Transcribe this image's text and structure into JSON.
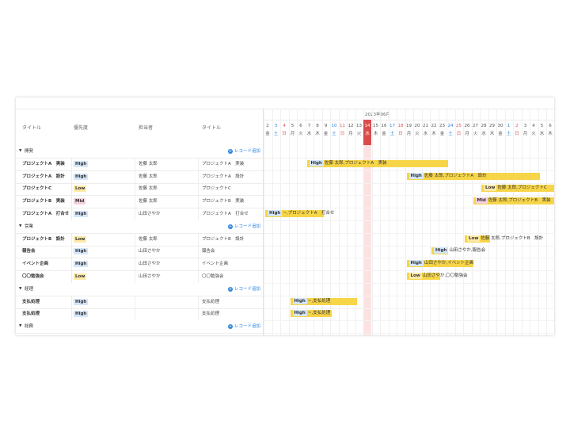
{
  "columns": {
    "title": "タイトル",
    "priority": "優先度",
    "assignee": "担当者",
    "task": "タイトル"
  },
  "add_record_label": "レコード追加",
  "month_label": "2023年06月",
  "days": [
    {
      "d": "2",
      "w": "金",
      "c": "#555"
    },
    {
      "d": "3",
      "w": "土",
      "c": "#2e86de"
    },
    {
      "d": "4",
      "w": "日",
      "c": "#e05555"
    },
    {
      "d": "5",
      "w": "月",
      "c": "#555"
    },
    {
      "d": "6",
      "w": "火",
      "c": "#555"
    },
    {
      "d": "7",
      "w": "水",
      "c": "#555"
    },
    {
      "d": "8",
      "w": "木",
      "c": "#555"
    },
    {
      "d": "9",
      "w": "金",
      "c": "#555"
    },
    {
      "d": "10",
      "w": "土",
      "c": "#2e86de"
    },
    {
      "d": "11",
      "w": "日",
      "c": "#e05555"
    },
    {
      "d": "12",
      "w": "月",
      "c": "#555"
    },
    {
      "d": "13",
      "w": "火",
      "c": "#555"
    },
    {
      "d": "14",
      "w": "水",
      "c": "#ffffff"
    },
    {
      "d": "15",
      "w": "木",
      "c": "#555"
    },
    {
      "d": "16",
      "w": "金",
      "c": "#555"
    },
    {
      "d": "17",
      "w": "土",
      "c": "#2e86de"
    },
    {
      "d": "18",
      "w": "日",
      "c": "#e05555"
    },
    {
      "d": "19",
      "w": "月",
      "c": "#555"
    },
    {
      "d": "20",
      "w": "火",
      "c": "#555"
    },
    {
      "d": "21",
      "w": "水",
      "c": "#555"
    },
    {
      "d": "22",
      "w": "木",
      "c": "#555"
    },
    {
      "d": "23",
      "w": "金",
      "c": "#555"
    },
    {
      "d": "24",
      "w": "土",
      "c": "#2e86de"
    },
    {
      "d": "25",
      "w": "日",
      "c": "#e05555"
    },
    {
      "d": "26",
      "w": "月",
      "c": "#555"
    },
    {
      "d": "27",
      "w": "火",
      "c": "#555"
    },
    {
      "d": "28",
      "w": "水",
      "c": "#555"
    },
    {
      "d": "29",
      "w": "木",
      "c": "#555"
    },
    {
      "d": "30",
      "w": "金",
      "c": "#555"
    },
    {
      "d": "1",
      "w": "土",
      "c": "#2e86de"
    },
    {
      "d": "2",
      "w": "日",
      "c": "#e05555"
    },
    {
      "d": "3",
      "w": "月",
      "c": "#555"
    },
    {
      "d": "4",
      "w": "火",
      "c": "#555"
    },
    {
      "d": "5",
      "w": "水",
      "c": "#555"
    },
    {
      "d": "6",
      "w": "木",
      "c": "#555"
    }
  ],
  "today_index": 12,
  "priority_colors": {
    "High": "#d4e6f9",
    "Low": "#fde9a8",
    "Mid": "#f3d0e0"
  },
  "groups": [
    {
      "label": "開発",
      "rows": [
        {
          "title": "プロジェクトA　実装",
          "priority": "High",
          "assignee": "佐藤 太郎",
          "task": "プロジェクトA　実装",
          "bar_start": 5,
          "bar_end": 22,
          "bar_label": "佐藤 太郎,プロジェクトA　実装"
        },
        {
          "title": "プロジェクトA　設計",
          "priority": "High",
          "assignee": "佐藤 太郎",
          "task": "プロジェクトA　設計",
          "bar_start": 17,
          "bar_end": 33,
          "bar_label": "佐藤 太郎,プロジェクトA　設計"
        },
        {
          "title": "プロジェクトC",
          "priority": "Low",
          "assignee": "佐藤 太郎",
          "task": "プロジェクトC",
          "bar_start": 26,
          "bar_end": 35,
          "bar_label": "佐藤 太郎,プロジェクトC"
        },
        {
          "title": "プロジェクトB　実装",
          "priority": "Mid",
          "assignee": "佐藤 太郎",
          "task": "プロジェクトB　実装",
          "bar_start": 25,
          "bar_end": 35,
          "bar_label": "佐藤 太郎,プロジェクトB　実装"
        },
        {
          "title": "プロジェクトA　打合せ",
          "priority": "High",
          "assignee": "山田さやか",
          "task": "プロジェクトA　打合せ",
          "bar_start": 0,
          "bar_end": 7,
          "bar_label": "~,プロジェクトA　打合せ"
        }
      ]
    },
    {
      "label": "営業",
      "rows": [
        {
          "title": "プロジェクトB　設計",
          "priority": "Low",
          "assignee": "佐藤 太郎",
          "task": "プロジェクトB　設計",
          "bar_start": 24,
          "bar_end": 27,
          "bar_label": "佐藤 太郎,プロジェクトB　設計"
        },
        {
          "title": "報告会",
          "priority": "High",
          "assignee": "山田さやか",
          "task": "報告会",
          "bar_start": 20,
          "bar_end": 22,
          "bar_label": "山田さやか,報告会"
        },
        {
          "title": "イベント企画",
          "priority": "High",
          "assignee": "山田さやか",
          "task": "イベント企画",
          "bar_start": 17,
          "bar_end": 25,
          "bar_label": "山田さやか,イベント企画"
        },
        {
          "title": "〇〇勉強会",
          "priority": "Low",
          "assignee": "山田さやか",
          "task": "〇〇勉強会",
          "bar_start": 17,
          "bar_end": 21,
          "bar_label": "山田さやか,〇〇勉強会"
        }
      ]
    },
    {
      "label": "経理",
      "rows": [
        {
          "title": "支払処理",
          "priority": "High",
          "assignee": "",
          "task": "支払処理",
          "bar_start": 3,
          "bar_end": 11,
          "bar_label": "~,支払処理"
        },
        {
          "title": "支払処理",
          "priority": "High",
          "assignee": "",
          "task": "支払処理",
          "bar_start": 3,
          "bar_end": 8,
          "bar_label": "~,支払処理"
        }
      ]
    },
    {
      "label": "総務",
      "rows": []
    }
  ]
}
